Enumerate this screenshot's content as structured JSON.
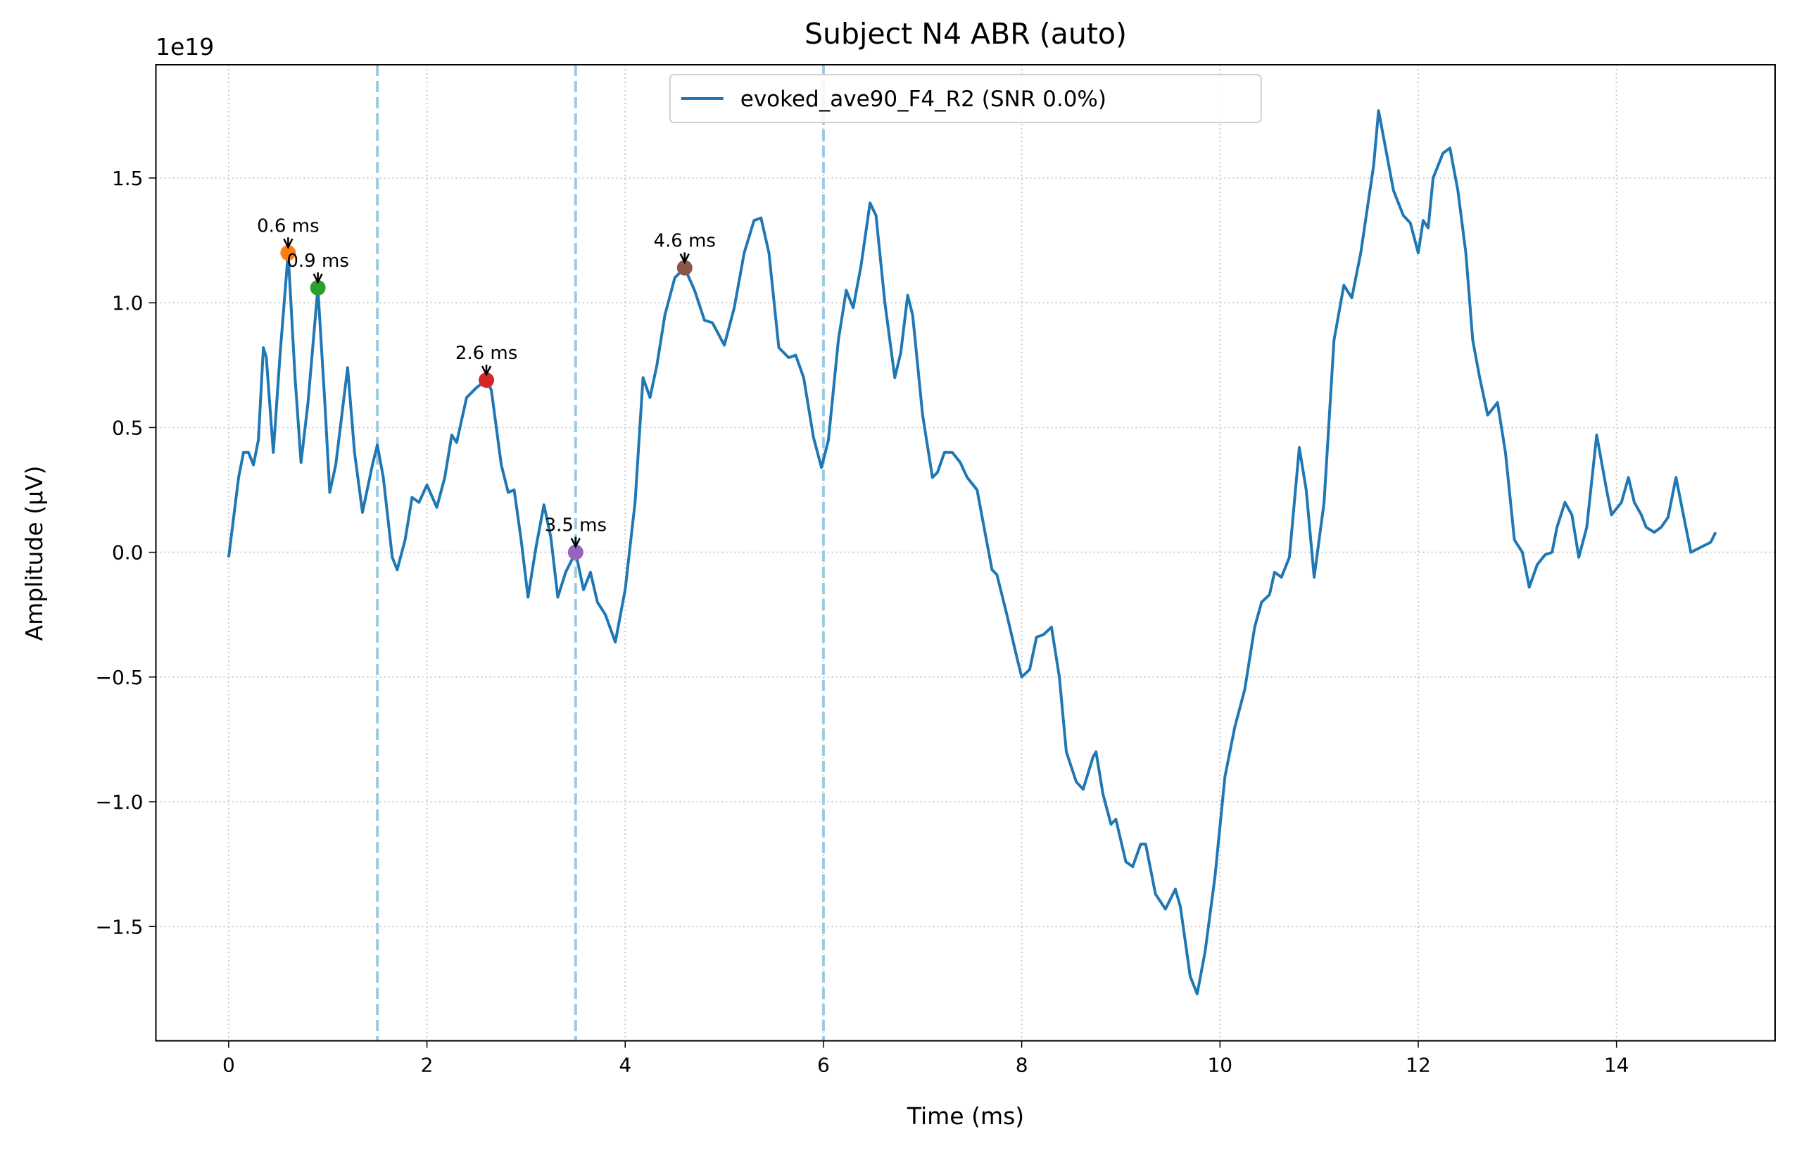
{
  "chart_data": {
    "type": "line",
    "title": "Subject N4 ABR (auto)",
    "xlabel": "Time (ms)",
    "ylabel": "Amplitude (µV)",
    "y_offset_label": "1e19",
    "xlim": [
      -0.734,
      15.6
    ],
    "ylim": [
      -1.958,
      1.954
    ],
    "xticks": [
      0,
      2,
      4,
      6,
      8,
      10,
      12,
      14
    ],
    "yticks": [
      {
        "value": -1.5,
        "label": "−1.5"
      },
      {
        "value": -1.0,
        "label": "−1.0"
      },
      {
        "value": -0.5,
        "label": "−0.5"
      },
      {
        "value": 0,
        "label": "0.0"
      },
      0.5,
      {
        "value": 1.0,
        "label": "1.0"
      },
      1.5
    ],
    "grid": true,
    "legend": "upper center",
    "x": [
      0,
      0.1,
      0.15,
      0.2,
      0.25,
      0.3,
      0.35,
      0.38,
      0.45,
      0.52,
      0.6,
      0.67,
      0.73,
      0.8,
      0.9,
      0.97,
      1.02,
      1.08,
      1.2,
      1.27,
      1.35,
      1.45,
      1.5,
      1.56,
      1.65,
      1.7,
      1.78,
      1.85,
      1.92,
      2.0,
      2.1,
      2.18,
      2.25,
      2.3,
      2.4,
      2.5,
      2.6,
      2.65,
      2.75,
      2.82,
      2.88,
      2.95,
      3.02,
      3.1,
      3.18,
      3.25,
      3.32,
      3.4,
      3.5,
      3.58,
      3.65,
      3.72,
      3.8,
      3.9,
      4.0,
      4.1,
      4.18,
      4.25,
      4.32,
      4.4,
      4.5,
      4.6,
      4.7,
      4.8,
      4.88,
      5.0,
      5.1,
      5.2,
      5.3,
      5.37,
      5.45,
      5.55,
      5.65,
      5.72,
      5.8,
      5.9,
      5.98,
      6.05,
      6.15,
      6.23,
      6.3,
      6.38,
      6.47,
      6.53,
      6.62,
      6.72,
      6.78,
      6.85,
      6.9,
      7.0,
      7.1,
      7.15,
      7.22,
      7.3,
      7.38,
      7.45,
      7.55,
      7.62,
      7.7,
      7.75,
      7.85,
      7.95,
      8.0,
      8.08,
      8.15,
      8.22,
      8.3,
      8.38,
      8.45,
      8.55,
      8.62,
      8.72,
      8.75,
      8.82,
      8.9,
      8.95,
      9.05,
      9.12,
      9.2,
      9.25,
      9.35,
      9.45,
      9.55,
      9.6,
      9.7,
      9.77,
      9.85,
      9.95,
      10.05,
      10.15,
      10.25,
      10.35,
      10.42,
      10.5,
      10.55,
      10.62,
      10.7,
      10.8,
      10.87,
      10.95,
      11.05,
      11.15,
      11.25,
      11.33,
      11.42,
      11.55,
      11.6,
      11.68,
      11.75,
      11.85,
      11.92,
      12.0,
      12.05,
      12.1,
      12.15,
      12.25,
      12.32,
      12.4,
      12.48,
      12.55,
      12.62,
      12.7,
      12.8,
      12.88,
      12.97,
      13.05,
      13.12,
      13.2,
      13.28,
      13.35,
      13.4,
      13.48,
      13.55,
      13.62,
      13.7,
      13.8,
      13.9,
      13.95,
      14.05,
      14.12,
      14.18,
      14.25,
      14.3,
      14.38,
      14.45,
      14.52,
      14.6,
      14.65,
      14.75,
      14.85,
      14.95,
      15.0
    ],
    "series": [
      {
        "name": "evoked_ave90_F4_R2 (SNR 0.0%)",
        "color": "#1f77b4",
        "values": [
          -0.02,
          0.3,
          0.4,
          0.4,
          0.35,
          0.45,
          0.82,
          0.78,
          0.4,
          0.8,
          1.2,
          0.7,
          0.36,
          0.6,
          1.06,
          0.6,
          0.24,
          0.35,
          0.74,
          0.4,
          0.16,
          0.35,
          0.43,
          0.3,
          -0.02,
          -0.07,
          0.05,
          0.22,
          0.2,
          0.27,
          0.18,
          0.3,
          0.47,
          0.44,
          0.62,
          0.66,
          0.69,
          0.65,
          0.35,
          0.24,
          0.25,
          0.05,
          -0.18,
          0.02,
          0.19,
          0.06,
          -0.18,
          -0.08,
          0.0,
          -0.15,
          -0.08,
          -0.2,
          -0.25,
          -0.36,
          -0.15,
          0.2,
          0.7,
          0.62,
          0.75,
          0.95,
          1.1,
          1.14,
          1.05,
          0.93,
          0.92,
          0.83,
          0.98,
          1.2,
          1.33,
          1.34,
          1.2,
          0.82,
          0.78,
          0.79,
          0.7,
          0.46,
          0.34,
          0.45,
          0.85,
          1.05,
          0.98,
          1.15,
          1.4,
          1.35,
          1.0,
          0.7,
          0.8,
          1.03,
          0.95,
          0.55,
          0.3,
          0.32,
          0.4,
          0.4,
          0.36,
          0.3,
          0.25,
          0.1,
          -0.07,
          -0.09,
          -0.25,
          -0.42,
          -0.5,
          -0.47,
          -0.34,
          -0.33,
          -0.3,
          -0.5,
          -0.8,
          -0.92,
          -0.95,
          -0.82,
          -0.8,
          -0.97,
          -1.09,
          -1.07,
          -1.24,
          -1.26,
          -1.17,
          -1.17,
          -1.37,
          -1.43,
          -1.35,
          -1.42,
          -1.7,
          -1.77,
          -1.6,
          -1.3,
          -0.9,
          -0.7,
          -0.55,
          -0.3,
          -0.2,
          -0.17,
          -0.08,
          -0.1,
          -0.02,
          0.42,
          0.25,
          -0.1,
          0.2,
          0.85,
          1.07,
          1.02,
          1.2,
          1.55,
          1.77,
          1.6,
          1.45,
          1.35,
          1.32,
          1.2,
          1.33,
          1.3,
          1.5,
          1.6,
          1.62,
          1.45,
          1.2,
          0.85,
          0.7,
          0.55,
          0.6,
          0.4,
          0.05,
          0.0,
          -0.14,
          -0.05,
          -0.01,
          0.0,
          0.1,
          0.2,
          0.15,
          -0.02,
          0.1,
          0.47,
          0.25,
          0.15,
          0.2,
          0.3,
          0.2,
          0.15,
          0.1,
          0.08,
          0.1,
          0.14,
          0.3,
          0.2,
          0.0,
          0.02,
          0.04,
          0.08
        ]
      }
    ],
    "vlines": {
      "x": [
        1.5,
        3.5,
        6.0
      ],
      "color": "#9ecae1"
    },
    "peaks": {
      "x": [
        0.6,
        0.9,
        2.6,
        3.5,
        4.6
      ],
      "values": [
        1.2,
        1.06,
        0.69,
        0.0,
        1.14
      ],
      "labels": [
        "0.6 ms",
        "0.9 ms",
        "2.6 ms",
        "3.5 ms",
        "4.6 ms"
      ],
      "colors": [
        "#ff7f0e",
        "#2ca02c",
        "#d62728",
        "#9467bd",
        "#8c564b"
      ]
    }
  }
}
